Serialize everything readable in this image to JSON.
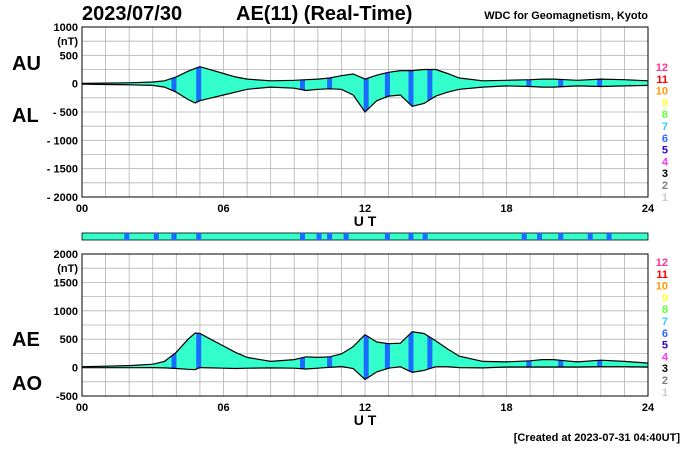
{
  "header": {
    "date": "2023/07/30",
    "title": "AE(11) (Real-Time)",
    "source": "WDC for Geomagnetism, Kyoto"
  },
  "footer": {
    "created": "[Created at 2023-07-31 04:40UT]"
  },
  "colors": {
    "fill": "#33ffcc",
    "stripe": "#1a6bff",
    "curve": "#000000",
    "grid": "#b3b3b3"
  },
  "station_count_scale": [
    {
      "label": "12",
      "color": "#ff3399"
    },
    {
      "label": "11",
      "color": "#ff0000"
    },
    {
      "label": "10",
      "color": "#ff9900"
    },
    {
      "label": "9",
      "color": "#ffff33"
    },
    {
      "label": "8",
      "color": "#66ff33"
    },
    {
      "label": "7",
      "color": "#33ccff"
    },
    {
      "label": "6",
      "color": "#3366ff"
    },
    {
      "label": "5",
      "color": "#3300cc"
    },
    {
      "label": "4",
      "color": "#ff33ff"
    },
    {
      "label": "3",
      "color": "#000000"
    },
    {
      "label": "2",
      "color": "#808080"
    },
    {
      "label": "1",
      "color": "#cccccc"
    }
  ],
  "chart_data": [
    {
      "type": "area",
      "panel": "AU/AL",
      "labels": [
        "AU",
        "AL"
      ],
      "ylabel": "(nT)",
      "xlabel": "U T",
      "ylim": [
        -2000,
        1000
      ],
      "yticks": [
        1000,
        500,
        0,
        -500,
        -1000,
        -1500,
        -2000
      ],
      "ytick_labels": [
        "1000",
        "500",
        "0",
        "- 500",
        "- 1000",
        "- 1500",
        "- 2000"
      ],
      "xlim": [
        0,
        24
      ],
      "xticks": [
        0,
        6,
        12,
        18,
        24
      ],
      "xtick_labels": [
        "00",
        "06",
        "12",
        "18",
        "24"
      ],
      "grid": true,
      "series": [
        {
          "name": "AU",
          "x": [
            0,
            1,
            2,
            3,
            3.5,
            4,
            4.5,
            4.8,
            5,
            5.5,
            6,
            6.5,
            7,
            8,
            9,
            9.5,
            10,
            10.5,
            11,
            11.5,
            12,
            12.5,
            13,
            13.5,
            14,
            14.5,
            15,
            15.5,
            16,
            17,
            18,
            19,
            19.5,
            20,
            20.5,
            21,
            22,
            23,
            24
          ],
          "y": [
            5,
            10,
            15,
            30,
            50,
            120,
            220,
            270,
            300,
            240,
            180,
            120,
            80,
            50,
            60,
            70,
            80,
            100,
            140,
            170,
            80,
            150,
            200,
            230,
            230,
            250,
            250,
            180,
            100,
            50,
            60,
            70,
            80,
            80,
            70,
            60,
            80,
            70,
            50
          ]
        },
        {
          "name": "AL",
          "x": [
            0,
            1,
            2,
            3,
            3.5,
            4,
            4.5,
            4.8,
            5,
            5.5,
            6,
            6.5,
            7,
            8,
            9,
            9.5,
            10,
            10.5,
            11,
            11.5,
            12,
            12.5,
            13,
            13.5,
            14,
            14.5,
            15,
            15.5,
            16,
            17,
            18,
            19,
            19.5,
            20,
            20.5,
            21,
            22,
            23,
            24
          ],
          "y": [
            -10,
            -15,
            -20,
            -30,
            -60,
            -150,
            -280,
            -340,
            -300,
            -250,
            -200,
            -150,
            -100,
            -60,
            -80,
            -120,
            -100,
            -90,
            -100,
            -200,
            -500,
            -300,
            -220,
            -200,
            -400,
            -350,
            -220,
            -150,
            -100,
            -60,
            -40,
            -50,
            -60,
            -60,
            -50,
            -40,
            -50,
            -40,
            -30
          ]
        }
      ]
    },
    {
      "type": "area",
      "panel": "AE/AO",
      "labels": [
        "AE",
        "AO"
      ],
      "ylabel": "(nT)",
      "xlabel": "U T",
      "ylim": [
        -500,
        2000
      ],
      "yticks": [
        2000,
        1500,
        1000,
        500,
        0,
        -500
      ],
      "ytick_labels": [
        "2000",
        "1500",
        "1000",
        "500",
        "0",
        "-500"
      ],
      "xlim": [
        0,
        24
      ],
      "xticks": [
        0,
        6,
        12,
        18,
        24
      ],
      "xtick_labels": [
        "00",
        "06",
        "12",
        "18",
        "24"
      ],
      "grid": true,
      "series": [
        {
          "name": "AE",
          "x": [
            0,
            1,
            2,
            3,
            3.5,
            4,
            4.5,
            4.8,
            5,
            5.5,
            6,
            6.5,
            7,
            8,
            9,
            9.5,
            10,
            10.5,
            11,
            11.5,
            12,
            12.5,
            13,
            13.5,
            14,
            14.5,
            15,
            15.5,
            16,
            17,
            18,
            19,
            19.5,
            20,
            20.5,
            21,
            22,
            23,
            24
          ],
          "y": [
            15,
            25,
            35,
            60,
            110,
            270,
            500,
            610,
            600,
            490,
            380,
            270,
            180,
            110,
            140,
            190,
            180,
            190,
            240,
            370,
            580,
            450,
            420,
            430,
            630,
            600,
            470,
            330,
            200,
            110,
            100,
            120,
            140,
            140,
            120,
            100,
            130,
            110,
            80
          ]
        },
        {
          "name": "AO",
          "x": [
            0,
            1,
            2,
            3,
            3.5,
            4,
            4.5,
            4.8,
            5,
            5.5,
            6,
            6.5,
            7,
            8,
            9,
            9.5,
            10,
            10.5,
            11,
            11.5,
            12,
            12.5,
            13,
            13.5,
            14,
            14.5,
            15,
            15.5,
            16,
            17,
            18,
            19,
            19.5,
            20,
            20.5,
            21,
            22,
            23,
            24
          ],
          "y": [
            -2,
            -2,
            -2,
            0,
            -5,
            -15,
            -30,
            -35,
            0,
            -5,
            -10,
            -15,
            -10,
            -5,
            -10,
            -25,
            -10,
            5,
            20,
            -15,
            -210,
            -75,
            -10,
            15,
            -85,
            -50,
            15,
            15,
            0,
            -5,
            10,
            10,
            10,
            10,
            10,
            10,
            15,
            15,
            10
          ]
        }
      ],
      "stripes_hours": [
        3.9,
        4.95,
        9.35,
        10.5,
        12.05,
        12.95,
        13.95,
        14.75,
        18.95,
        20.3,
        21.95
      ]
    }
  ],
  "indicator_bar_stripes_hours": [
    1.9,
    3.15,
    3.9,
    4.95,
    9.35,
    10.05,
    10.5,
    11.2,
    12.95,
    13.95,
    14.55,
    18.75,
    19.4,
    20.3,
    21.55,
    22.35
  ]
}
